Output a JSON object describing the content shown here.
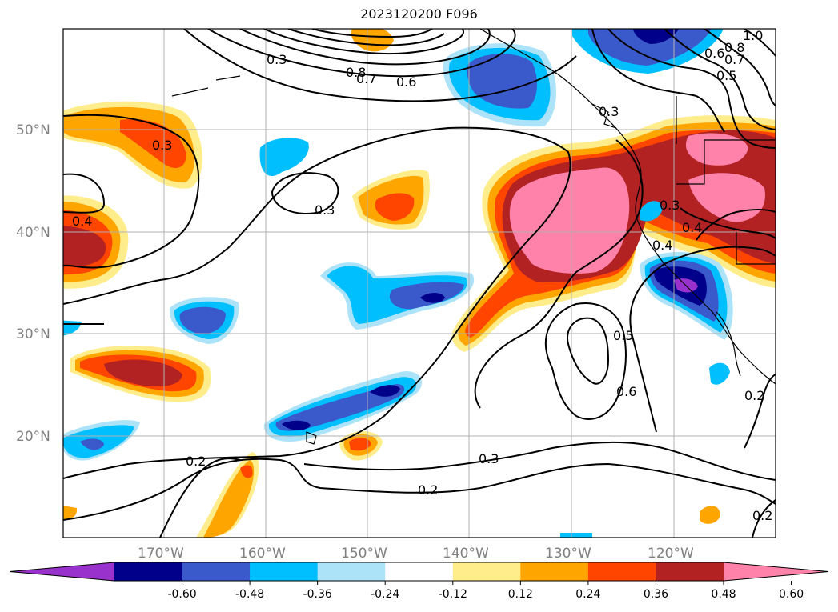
{
  "title": "2023120200 F096",
  "latitude_labels": [
    "50°N",
    "40°N",
    "30°N",
    "20°N"
  ],
  "longitude_labels": [
    "170°W",
    "160°W",
    "150°W",
    "140°W",
    "130°W",
    "120°W"
  ],
  "colorbar": {
    "colors": [
      "#9932cc",
      "#00008b",
      "#3a5acc",
      "#00bfff",
      "#ade3f9",
      "#ffffff",
      "#ffec8b",
      "#ffa500",
      "#ff4500",
      "#b22222",
      "#ff82ab"
    ],
    "tick_labels": [
      "-0.60",
      "-0.48",
      "-0.36",
      "-0.24",
      "-0.12",
      "0.12",
      "0.24",
      "0.36",
      "0.48",
      "0.60"
    ]
  },
  "contour_labels": [
    "0.2",
    "0.3",
    "0.4",
    "0.5",
    "0.6",
    "0.7",
    "0.8",
    "1.0"
  ],
  "map_labels": [
    "0.3",
    "0.3",
    "0.4",
    "0.3",
    "0.2",
    "0.2",
    "0.3",
    "0.5",
    "0.6",
    "0.6",
    "0.7",
    "0.8",
    "0.4",
    "0.4",
    "0.3",
    "0.2",
    "0.2",
    "0.6",
    "0.5",
    "0.7",
    "1.0",
    "0.8",
    "0.3"
  ]
}
